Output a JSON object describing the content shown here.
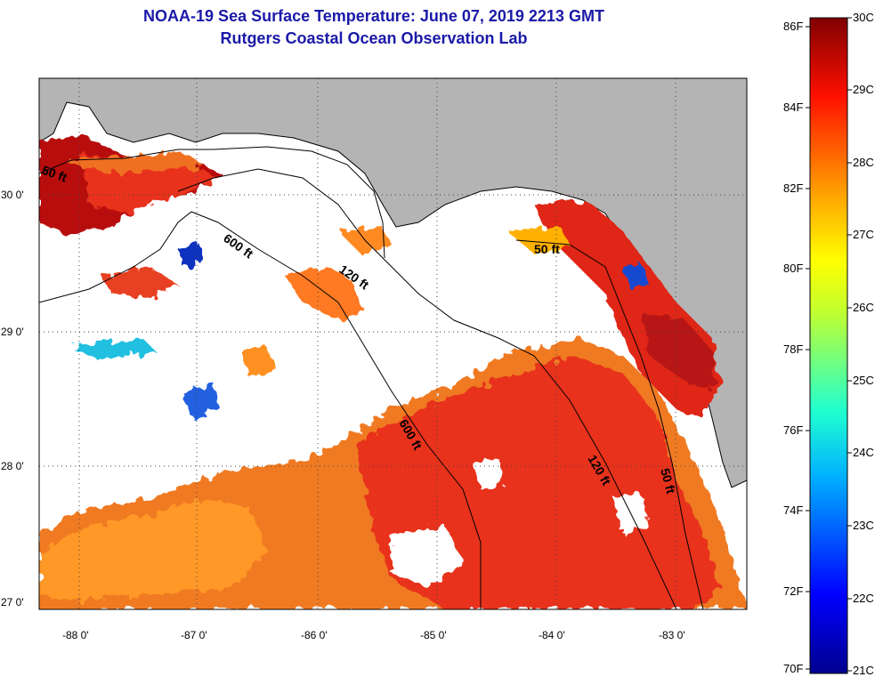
{
  "title": {
    "line1": "NOAA-19 Sea Surface Temperature:  June 07, 2019 2213 GMT",
    "line2": "Rutgers Coastal Ocean Observation Lab"
  },
  "map": {
    "lat_ticks": [
      "30 0'",
      "29 0'",
      "28 0'",
      "27 0'"
    ],
    "lon_ticks": [
      "-88 0'",
      "-87 0'",
      "-86 0'",
      "-85 0'",
      "-84 0'",
      "-83 0'"
    ],
    "contour_labels": [
      "50 ft",
      "600 ft",
      "120 ft",
      "50 ft",
      "600 ft",
      "120 ft",
      "50 ft"
    ],
    "colors": {
      "land": "#b4b4b4",
      "cloud": "#ffffff",
      "warm": "#e8301c",
      "hot": "#b81010",
      "orange": "#f07020",
      "cold": "#1030c0"
    }
  },
  "colorbar": {
    "fahrenheit": [
      "86F",
      "84F",
      "82F",
      "80F",
      "78F",
      "76F",
      "74F",
      "72F",
      "70F"
    ],
    "celsius": [
      "30C",
      "29C",
      "28C",
      "27C",
      "26C",
      "25C",
      "24C",
      "23C",
      "22C",
      "21C"
    ]
  }
}
